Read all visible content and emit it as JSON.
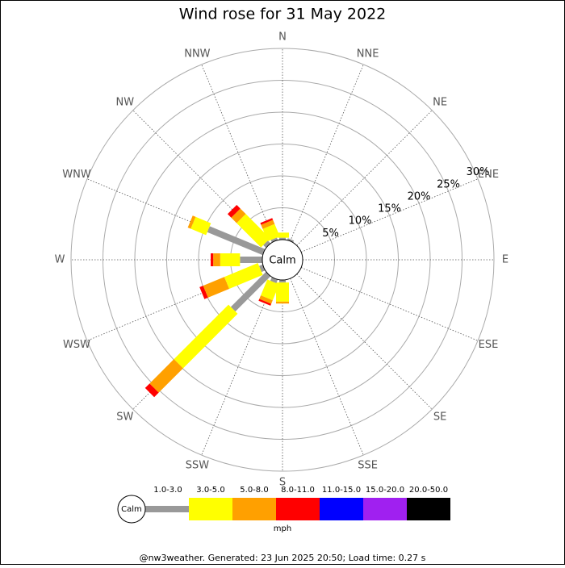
{
  "chart_data": {
    "type": "windrose",
    "title": "Wind rose for 31 May 2022",
    "directions": [
      "N",
      "NNE",
      "NE",
      "ENE",
      "E",
      "ESE",
      "SE",
      "SSE",
      "S",
      "SSW",
      "SW",
      "WSW",
      "W",
      "WNW",
      "NW",
      "NNW"
    ],
    "calm_label": "Calm",
    "rlim": [
      0,
      30
    ],
    "rticks": [
      {
        "value": 5,
        "label": "5%"
      },
      {
        "value": 10,
        "label": "10%"
      },
      {
        "value": 15,
        "label": "15%"
      },
      {
        "value": 20,
        "label": "20%"
      },
      {
        "value": 25,
        "label": "25%"
      },
      {
        "value": 30,
        "label": "30%"
      }
    ],
    "series": [
      {
        "name": "1.0-3.0",
        "color": "#999999",
        "values": [
          0.3,
          0.3,
          0,
          0,
          0,
          0,
          0,
          0,
          0.4,
          0.6,
          7.8,
          0.6,
          3.5,
          9.4,
          0.6,
          0.4
        ]
      },
      {
        "name": "3.0-5.0",
        "color": "#ffff00",
        "values": [
          0.8,
          0,
          0,
          0,
          0,
          0,
          0,
          0,
          3.0,
          2.7,
          12.1,
          5.7,
          3.1,
          2.6,
          5.4,
          2.1
        ]
      },
      {
        "name": "5.0-8.0",
        "color": "#ffa000",
        "values": [
          0,
          0,
          0,
          0,
          0,
          0,
          0,
          0,
          0.3,
          0.6,
          5.4,
          3.6,
          1.1,
          0.5,
          1.2,
          0.7
        ]
      },
      {
        "name": "8.0-11.0",
        "color": "#ff0000",
        "values": [
          0,
          0,
          0,
          0,
          0,
          0,
          0,
          0,
          0,
          0.3,
          1.0,
          0.6,
          0.4,
          0,
          0.8,
          0.3
        ]
      },
      {
        "name": "11.0-15.0",
        "color": "#0000ff",
        "values": [
          0,
          0,
          0,
          0,
          0,
          0,
          0,
          0,
          0,
          0,
          0,
          0,
          0,
          0,
          0,
          0
        ]
      },
      {
        "name": "15.0-20.0",
        "color": "#a020f0",
        "values": [
          0,
          0,
          0,
          0,
          0,
          0,
          0,
          0,
          0,
          0,
          0,
          0,
          0,
          0,
          0,
          0
        ]
      },
      {
        "name": "20.0-50.0",
        "color": "#000000",
        "values": [
          0,
          0,
          0,
          0,
          0,
          0,
          0,
          0,
          0,
          0,
          0,
          0,
          0,
          0,
          0,
          0
        ]
      }
    ],
    "unit": "mph",
    "footer": "@nw3weather. Generated: 23 Jun 2025 20:50; Load time: 0.27 s"
  }
}
